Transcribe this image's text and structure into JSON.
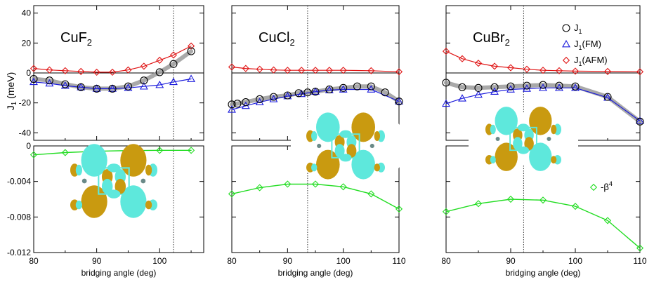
{
  "chart_data": {
    "type": "line",
    "ylabel_top": "J",
    "ylabel_top_sub": "1",
    "ylabel_top_unit": " (meV)",
    "xlabel": "bridging angle (deg)",
    "ylim_top": [
      -45,
      45
    ],
    "yticks_top": [
      40,
      20,
      0,
      -20,
      -40
    ],
    "ylim_bottom": [
      -0.012,
      0
    ],
    "yticks_bottom": [
      "0",
      "-0.004",
      "-0.008",
      "-0.012"
    ],
    "colors": {
      "J1": "#000000",
      "J1_FM": "#1a1adc",
      "J1_AFM": "#e01515",
      "beta": "#22dd22",
      "guide": "#9a9a9a",
      "orb_cyan": "#5ee8dc",
      "orb_gold": "#c99a10"
    },
    "legend": {
      "J1": {
        "main": "J",
        "sub": "1",
        "suffix": ""
      },
      "FM": {
        "main": "J",
        "sub": "1",
        "suffix": "(FM)"
      },
      "AFM": {
        "main": "J",
        "sub": "1",
        "suffix": "(AFM)"
      },
      "beta": {
        "main": "-β",
        "sup": "4"
      }
    },
    "panels": [
      {
        "compound": "CuF",
        "compound_sub": "2",
        "xlim": [
          80,
          107
        ],
        "xticks": [
          80,
          90,
          100
        ],
        "exp_angle": 102.2,
        "J1": {
          "x": [
            80,
            82.5,
            85,
            87.5,
            90,
            92.5,
            95,
            97.5,
            100,
            102.2,
            105
          ],
          "y": [
            -4,
            -5,
            -7.5,
            -9.5,
            -10.5,
            -10.5,
            -9,
            -5,
            0.5,
            6,
            14.5
          ]
        },
        "FM": {
          "x": [
            80,
            82.5,
            85,
            87.5,
            90,
            92.5,
            95,
            97.5,
            100,
            102.2,
            105
          ],
          "y": [
            -6,
            -7,
            -8.5,
            -9.5,
            -10.5,
            -10.5,
            -10,
            -9,
            -8,
            -6,
            -4
          ]
        },
        "AFM": {
          "x": [
            80,
            82.5,
            85,
            87.5,
            90,
            92.5,
            95,
            97.5,
            100,
            102.2,
            105
          ],
          "y": [
            3,
            2,
            1.5,
            1,
            0.5,
            0.5,
            2,
            4.5,
            8.5,
            12,
            18
          ]
        },
        "beta": {
          "x": [
            80,
            85,
            90,
            95,
            100,
            105
          ],
          "y": [
            -0.001,
            -0.00075,
            -0.0006,
            -0.00053,
            -0.0005,
            -0.0005
          ]
        }
      },
      {
        "compound": "CuCl",
        "compound_sub": "2",
        "xlim": [
          80,
          110
        ],
        "xticks": [
          80,
          90,
          100,
          110
        ],
        "exp_angle": 93.6,
        "J1": {
          "x": [
            80,
            81,
            82.5,
            85,
            87.5,
            90,
            92,
            93.6,
            95,
            97.5,
            100,
            102.5,
            105,
            107.5,
            110
          ],
          "y": [
            -21,
            -20.5,
            -19.5,
            -17.5,
            -16,
            -15,
            -13.5,
            -13,
            -12.5,
            -11,
            -10,
            -9,
            -9,
            -13,
            -19
          ]
        },
        "FM": {
          "x": [
            80,
            82.5,
            85,
            87.5,
            90,
            92.5,
            95,
            97.5,
            100,
            105,
            110
          ],
          "y": [
            -24.5,
            -22,
            -19.5,
            -17.5,
            -15.5,
            -14,
            -12.5,
            -11.5,
            -11,
            -11,
            -19
          ]
        },
        "AFM": {
          "x": [
            80,
            82.5,
            85,
            87.5,
            90,
            92.5,
            95,
            97.5,
            100,
            105,
            110
          ],
          "y": [
            4,
            3,
            2.5,
            2,
            1.8,
            1.8,
            1.8,
            1.8,
            1.8,
            1.5,
            0.8
          ]
        },
        "beta": {
          "x": [
            80,
            85,
            90,
            95,
            100,
            105,
            110
          ],
          "y": [
            -0.0054,
            -0.0047,
            -0.0043,
            -0.0043,
            -0.0046,
            -0.0054,
            -0.0071
          ]
        }
      },
      {
        "compound": "CuBr",
        "compound_sub": "2",
        "xlim": [
          80,
          110
        ],
        "xticks": [
          80,
          90,
          100,
          110
        ],
        "exp_angle": 92,
        "J1": {
          "x": [
            80,
            82.5,
            85,
            87.5,
            90,
            92.5,
            95,
            97.5,
            100,
            105,
            110
          ],
          "y": [
            -6.5,
            -9.5,
            -10,
            -9.5,
            -9,
            -8.5,
            -8,
            -8.5,
            -9,
            -16,
            -32.5
          ]
        },
        "FM": {
          "x": [
            80,
            82.5,
            85,
            87.5,
            90,
            92.5,
            95,
            97.5,
            100,
            105,
            110
          ],
          "y": [
            -20.5,
            -17,
            -14.5,
            -12.5,
            -11,
            -10.5,
            -10,
            -10,
            -10,
            -16.5,
            -32
          ]
        },
        "AFM": {
          "x": [
            80,
            82.5,
            85,
            87.5,
            90,
            92.5,
            95,
            97.5,
            100,
            105,
            110
          ],
          "y": [
            14.5,
            9.5,
            6.5,
            4.5,
            3.5,
            2.5,
            1.8,
            1.5,
            1.2,
            1,
            0.8
          ]
        },
        "beta": {
          "x": [
            80,
            85,
            90,
            95,
            100,
            105,
            110
          ],
          "y": [
            -0.0074,
            -0.0065,
            -0.006,
            -0.0061,
            -0.0068,
            -0.0084,
            -0.0115
          ]
        }
      }
    ]
  }
}
